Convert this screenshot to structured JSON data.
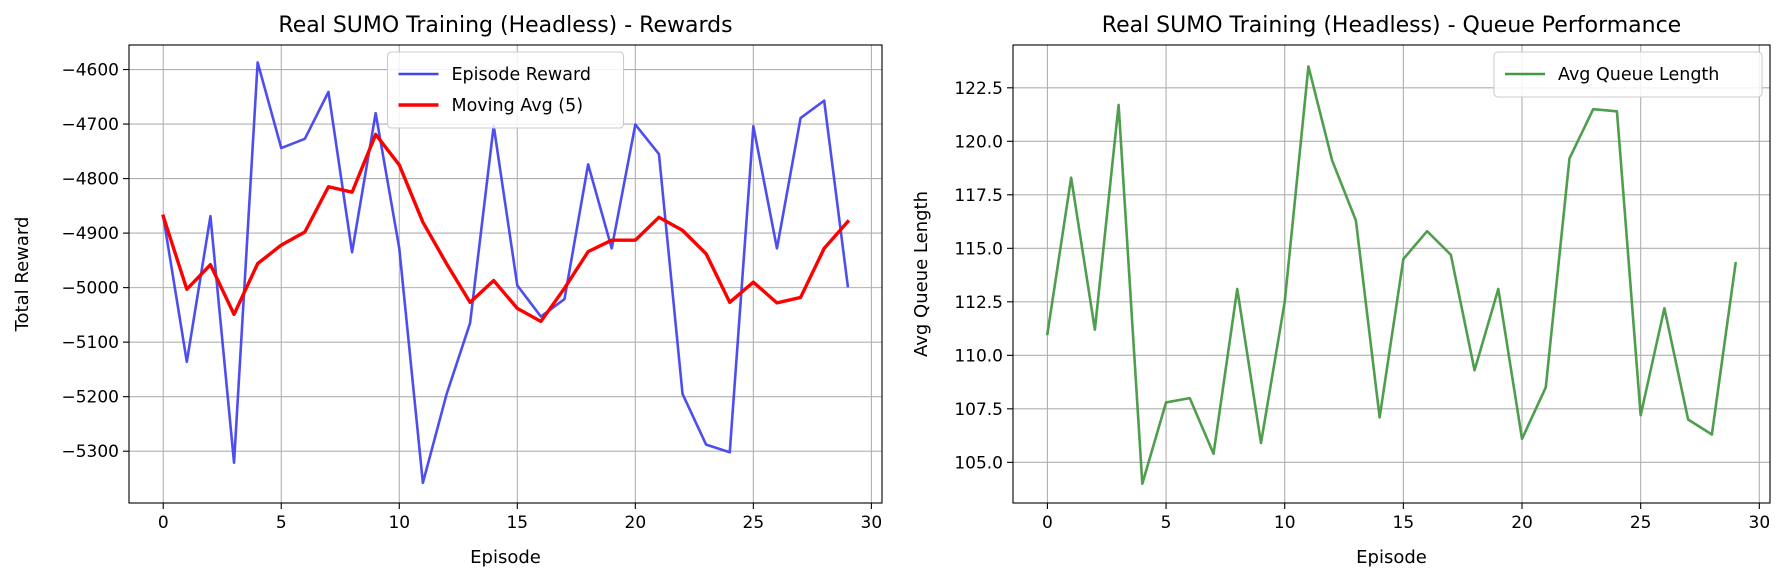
{
  "chart_data": [
    {
      "type": "line",
      "title": "Real SUMO Training (Headless) - Rewards",
      "xlabel": "Episode",
      "ylabel": "Total Reward",
      "xlim": [
        -1.45,
        30.45
      ],
      "ylim": [
        -5395,
        -4555
      ],
      "xticks": [
        0,
        5,
        10,
        15,
        20,
        25,
        30
      ],
      "yticks": [
        -5300,
        -5200,
        -5100,
        -5000,
        -4900,
        -4800,
        -4700,
        -4600
      ],
      "grid": true,
      "legend_position": "upper center",
      "x": [
        0,
        1,
        2,
        3,
        4,
        5,
        6,
        7,
        8,
        9,
        10,
        11,
        12,
        13,
        14,
        15,
        16,
        17,
        18,
        19,
        20,
        21,
        22,
        23,
        24,
        25,
        26,
        27,
        28,
        29
      ],
      "series": [
        {
          "name": "Episode Reward",
          "color": "#4444ee",
          "values": [
            -4869,
            -5136,
            -4869,
            -5321,
            -4587,
            -4744,
            -4727,
            -4641,
            -4935,
            -4680,
            -4928,
            -5358,
            -5196,
            -5065,
            -4703,
            -4996,
            -5053,
            -5021,
            -4774,
            -4928,
            -4701,
            -4755,
            -5195,
            -5288,
            -5302,
            -4704,
            -4928,
            -4689,
            -4657,
            -4997
          ]
        },
        {
          "name": "Moving Avg (5)",
          "color": "#ff0000",
          "values": [
            -4869,
            -5003,
            -4958,
            -5049,
            -4956,
            -4922,
            -4898,
            -4815,
            -4825,
            -4719,
            -4775,
            -4880,
            -4956,
            -5027,
            -4987,
            -5038,
            -5062,
            -5001,
            -4934,
            -4913,
            -4913,
            -4871,
            -4895,
            -4938,
            -5027,
            -4990,
            -5028,
            -5018,
            -4928,
            -4879
          ]
        }
      ]
    },
    {
      "type": "line",
      "title": "Real SUMO Training (Headless) - Queue Performance",
      "xlabel": "Episode",
      "ylabel": "Avg Queue Length",
      "xlim": [
        -1.45,
        30.45
      ],
      "ylim": [
        103.1,
        124.5
      ],
      "xticks": [
        0,
        5,
        10,
        15,
        20,
        25,
        30
      ],
      "yticks": [
        105.0,
        107.5,
        110.0,
        112.5,
        115.0,
        117.5,
        120.0,
        122.5
      ],
      "ytick_labels": [
        "105.0",
        "107.5",
        "110.0",
        "112.5",
        "115.0",
        "117.5",
        "120.0",
        "122.5"
      ],
      "grid": true,
      "legend_position": "upper right",
      "x": [
        0,
        1,
        2,
        3,
        4,
        5,
        6,
        7,
        8,
        9,
        10,
        11,
        12,
        13,
        14,
        15,
        16,
        17,
        18,
        19,
        20,
        21,
        22,
        23,
        24,
        25,
        26,
        27,
        28,
        29
      ],
      "series": [
        {
          "name": "Avg Queue Length",
          "color": "#449944",
          "values": [
            111.0,
            118.3,
            111.2,
            121.7,
            104.0,
            107.8,
            108.0,
            105.4,
            113.1,
            105.9,
            112.5,
            123.5,
            119.1,
            116.3,
            107.1,
            114.5,
            115.8,
            114.7,
            109.3,
            113.1,
            106.1,
            108.5,
            119.2,
            121.5,
            121.4,
            107.2,
            112.2,
            107.0,
            106.3,
            114.3
          ]
        }
      ]
    }
  ]
}
